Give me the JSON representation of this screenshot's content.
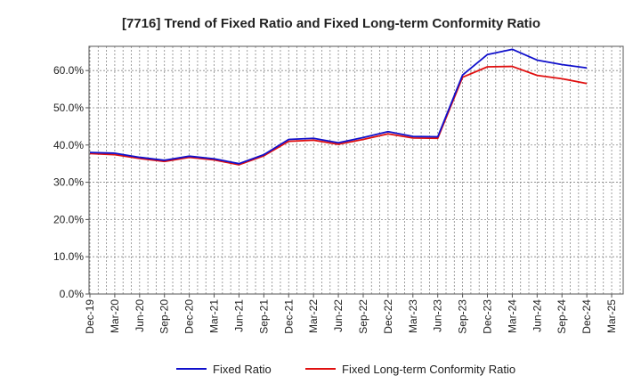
{
  "chart_data": {
    "type": "line",
    "title": "[7716]  Trend of Fixed Ratio and Fixed Long-term Conformity Ratio",
    "xlabel": "",
    "ylabel": "",
    "x": [
      "Dec-19",
      "Mar-20",
      "Jun-20",
      "Sep-20",
      "Dec-20",
      "Mar-21",
      "Jun-21",
      "Sep-21",
      "Dec-21",
      "Mar-22",
      "Jun-22",
      "Sep-22",
      "Dec-22",
      "Mar-23",
      "Jun-23",
      "Sep-23",
      "Dec-23",
      "Mar-24",
      "Jun-24",
      "Sep-24",
      "Dec-24"
    ],
    "x_ticks": [
      "Dec-19",
      "Mar-20",
      "Jun-20",
      "Sep-20",
      "Dec-20",
      "Mar-21",
      "Jun-21",
      "Sep-21",
      "Dec-21",
      "Mar-22",
      "Jun-22",
      "Sep-22",
      "Dec-22",
      "Mar-23",
      "Jun-23",
      "Sep-23",
      "Dec-23",
      "Mar-24",
      "Jun-24",
      "Sep-24",
      "Dec-24",
      "Mar-25"
    ],
    "y_ticks": [
      "0.0%",
      "10.0%",
      "20.0%",
      "30.0%",
      "40.0%",
      "50.0%",
      "60.0%"
    ],
    "ylim": [
      0,
      66.5
    ],
    "grid": true,
    "legend_position": "bottom",
    "series": [
      {
        "name": "Fixed Ratio",
        "color": "#1010cc",
        "values": [
          38.0,
          37.8,
          36.7,
          35.9,
          37.0,
          36.3,
          35.0,
          37.4,
          41.5,
          41.8,
          40.6,
          42.0,
          43.6,
          42.3,
          42.2,
          58.8,
          64.3,
          65.7,
          62.8,
          61.6,
          60.7
        ]
      },
      {
        "name": "Fixed Long-term Conformity Ratio",
        "color": "#e01010",
        "values": [
          37.7,
          37.4,
          36.4,
          35.6,
          36.7,
          36.0,
          34.7,
          37.1,
          41.0,
          41.3,
          40.2,
          41.5,
          43.0,
          41.9,
          41.8,
          58.2,
          61.0,
          61.1,
          58.7,
          57.8,
          56.5
        ]
      }
    ]
  }
}
